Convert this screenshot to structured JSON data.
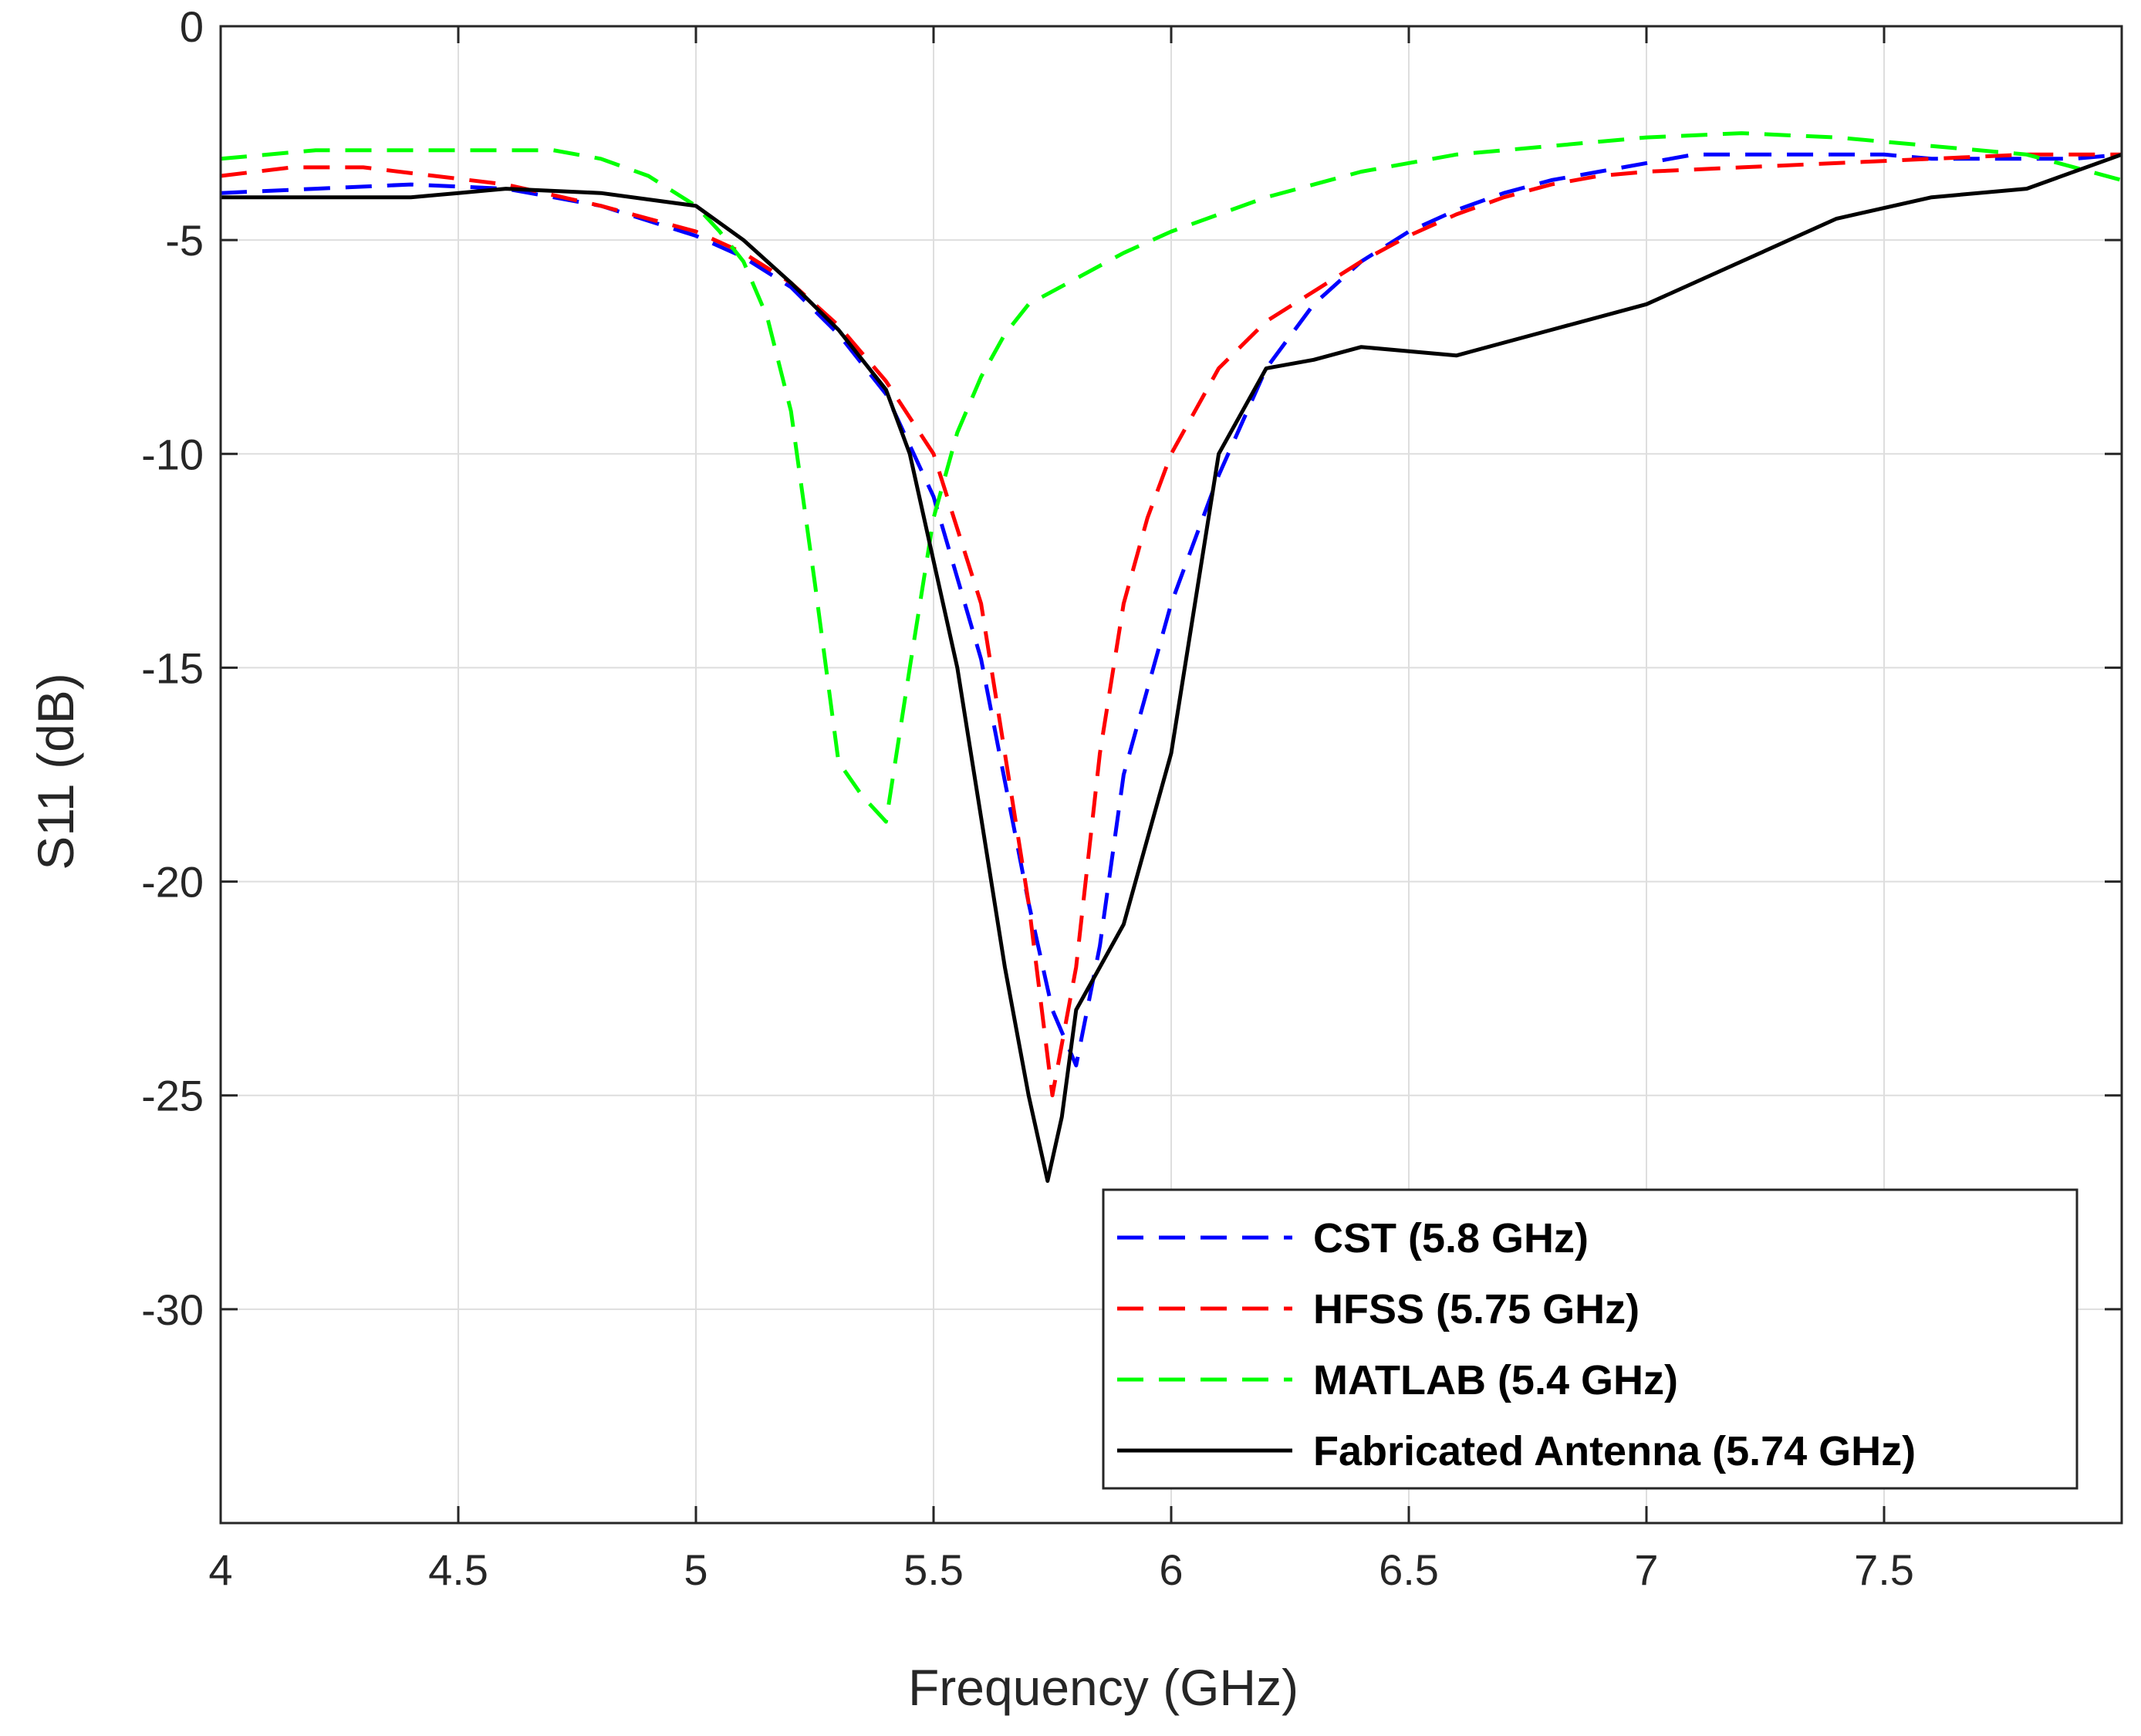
{
  "chart_data": {
    "type": "line",
    "title": "",
    "xlabel": "Frequency (GHz)",
    "ylabel": "S11 (dB)",
    "xlim": [
      4,
      8
    ],
    "ylim": [
      -35,
      0
    ],
    "grid": true,
    "legend_position": "bottom-right",
    "x_ticks": [
      4,
      4.5,
      5,
      5.5,
      6,
      6.5,
      7,
      7.5
    ],
    "x_tick_labels": [
      "4",
      "4.5",
      "5",
      "5.5",
      "6",
      "6.5",
      "7",
      "7.5"
    ],
    "y_ticks": [
      0,
      -5,
      -10,
      -15,
      -20,
      -25,
      -30
    ],
    "y_tick_labels": [
      "0",
      "-5",
      "-10",
      "-15",
      "-20",
      "-25",
      "-30"
    ],
    "series": [
      {
        "name": "CST (5.8 GHz)",
        "color": "#0000ff",
        "style": "dashed",
        "x": [
          4.0,
          4.2,
          4.4,
          4.6,
          4.8,
          5.0,
          5.1,
          5.2,
          5.3,
          5.4,
          5.5,
          5.6,
          5.7,
          5.75,
          5.8,
          5.85,
          5.9,
          6.0,
          6.1,
          6.2,
          6.3,
          6.4,
          6.5,
          6.6,
          6.7,
          6.8,
          6.9,
          7.0,
          7.1,
          7.2,
          7.3,
          7.4,
          7.5,
          7.6,
          7.7,
          7.8,
          7.9,
          8.0
        ],
        "y": [
          -3.9,
          -3.8,
          -3.7,
          -3.8,
          -4.2,
          -4.9,
          -5.4,
          -6.1,
          -7.2,
          -8.6,
          -11.0,
          -14.8,
          -20.5,
          -23.0,
          -24.3,
          -21.5,
          -17.5,
          -13.5,
          -10.5,
          -8.0,
          -6.5,
          -5.5,
          -4.8,
          -4.3,
          -3.9,
          -3.6,
          -3.4,
          -3.2,
          -3.0,
          -3.0,
          -3.0,
          -3.0,
          -3.0,
          -3.1,
          -3.1,
          -3.1,
          -3.1,
          -3.0
        ]
      },
      {
        "name": "HFSS (5.75 GHz)",
        "color": "#ff0000",
        "style": "dashed",
        "x": [
          4.0,
          4.15,
          4.3,
          4.45,
          4.6,
          4.8,
          5.0,
          5.1,
          5.2,
          5.3,
          5.4,
          5.5,
          5.6,
          5.7,
          5.75,
          5.8,
          5.85,
          5.9,
          5.95,
          6.0,
          6.1,
          6.2,
          6.3,
          6.4,
          6.5,
          6.6,
          6.7,
          6.8,
          6.9,
          7.0,
          7.2,
          7.4,
          7.6,
          7.8,
          8.0
        ],
        "y": [
          -3.5,
          -3.3,
          -3.3,
          -3.5,
          -3.7,
          -4.2,
          -4.8,
          -5.3,
          -6.0,
          -7.0,
          -8.3,
          -10.0,
          -13.5,
          -20.5,
          -25.0,
          -22.0,
          -17.0,
          -13.5,
          -11.5,
          -10.0,
          -8.0,
          -6.9,
          -6.2,
          -5.5,
          -4.9,
          -4.4,
          -4.0,
          -3.7,
          -3.5,
          -3.4,
          -3.3,
          -3.2,
          -3.1,
          -3.0,
          -3.0
        ]
      },
      {
        "name": "MATLAB (5.4 GHz)",
        "color": "#00ff00",
        "style": "dashed",
        "x": [
          4.0,
          4.2,
          4.4,
          4.6,
          4.7,
          4.8,
          4.9,
          5.0,
          5.05,
          5.1,
          5.15,
          5.2,
          5.25,
          5.3,
          5.35,
          5.4,
          5.45,
          5.5,
          5.55,
          5.6,
          5.65,
          5.7,
          5.8,
          5.9,
          6.0,
          6.2,
          6.4,
          6.6,
          6.8,
          7.0,
          7.2,
          7.4,
          7.6,
          7.8,
          8.0
        ],
        "y": [
          -3.1,
          -2.9,
          -2.9,
          -2.9,
          -2.9,
          -3.1,
          -3.5,
          -4.2,
          -4.8,
          -5.5,
          -6.8,
          -9.0,
          -13.0,
          -17.2,
          -18.0,
          -18.6,
          -15.0,
          -11.5,
          -9.5,
          -8.2,
          -7.2,
          -6.5,
          -5.9,
          -5.3,
          -4.8,
          -4.0,
          -3.4,
          -3.0,
          -2.8,
          -2.6,
          -2.5,
          -2.6,
          -2.8,
          -3.0,
          -3.6
        ]
      },
      {
        "name": "Fabricated Antenna (5.74 GHz)",
        "color": "#000000",
        "style": "solid",
        "x": [
          4.0,
          4.2,
          4.4,
          4.5,
          4.6,
          4.8,
          5.0,
          5.1,
          5.2,
          5.3,
          5.4,
          5.45,
          5.5,
          5.55,
          5.6,
          5.65,
          5.7,
          5.74,
          5.77,
          5.8,
          5.9,
          6.0,
          6.1,
          6.2,
          6.3,
          6.4,
          6.5,
          6.6,
          6.8,
          7.0,
          7.2,
          7.4,
          7.6,
          7.8,
          8.0
        ],
        "y": [
          -4.0,
          -4.0,
          -4.0,
          -3.9,
          -3.8,
          -3.9,
          -4.2,
          -5.0,
          -6.0,
          -7.1,
          -8.5,
          -10.0,
          -12.5,
          -15.0,
          -18.5,
          -22.0,
          -25.0,
          -27.0,
          -25.5,
          -23.0,
          -21.0,
          -17.0,
          -10.0,
          -8.0,
          -7.8,
          -7.5,
          -7.6,
          -7.7,
          -7.1,
          -6.5,
          -5.5,
          -4.5,
          -4.0,
          -3.8,
          -3.0
        ]
      }
    ]
  }
}
